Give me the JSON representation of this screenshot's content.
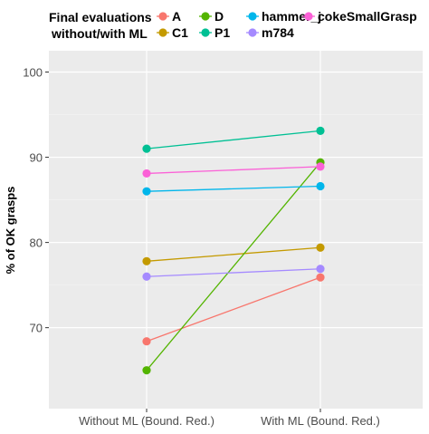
{
  "chart_data": {
    "type": "line",
    "categories": [
      "Without ML (Bound. Red.)",
      "With ML (Bound. Red.)"
    ],
    "ylabel": "% of OK grasps",
    "xlabel": "",
    "ylim": [
      60.5,
      102.5
    ],
    "yticks": [
      70,
      80,
      90,
      100
    ],
    "grid": true,
    "legend_title": [
      "Final evaluations",
      "without/with ML"
    ],
    "legend_position": "top",
    "series": [
      {
        "name": "A",
        "color": "#F8766D",
        "values": [
          68.4,
          75.9
        ]
      },
      {
        "name": "C1",
        "color": "#C49A00",
        "values": [
          77.8,
          79.4
        ]
      },
      {
        "name": "D",
        "color": "#53B400",
        "values": [
          65.0,
          89.4
        ]
      },
      {
        "name": "P1",
        "color": "#00C094",
        "values": [
          91.0,
          93.1
        ]
      },
      {
        "name": "hammer_j",
        "color": "#00B6EB",
        "values": [
          86.0,
          86.6
        ]
      },
      {
        "name": "m784",
        "color": "#A58AFF",
        "values": [
          76.0,
          76.9
        ]
      },
      {
        "name": "cokeSmallGrasp",
        "color": "#FB61D7",
        "values": [
          88.1,
          88.9
        ]
      }
    ]
  }
}
